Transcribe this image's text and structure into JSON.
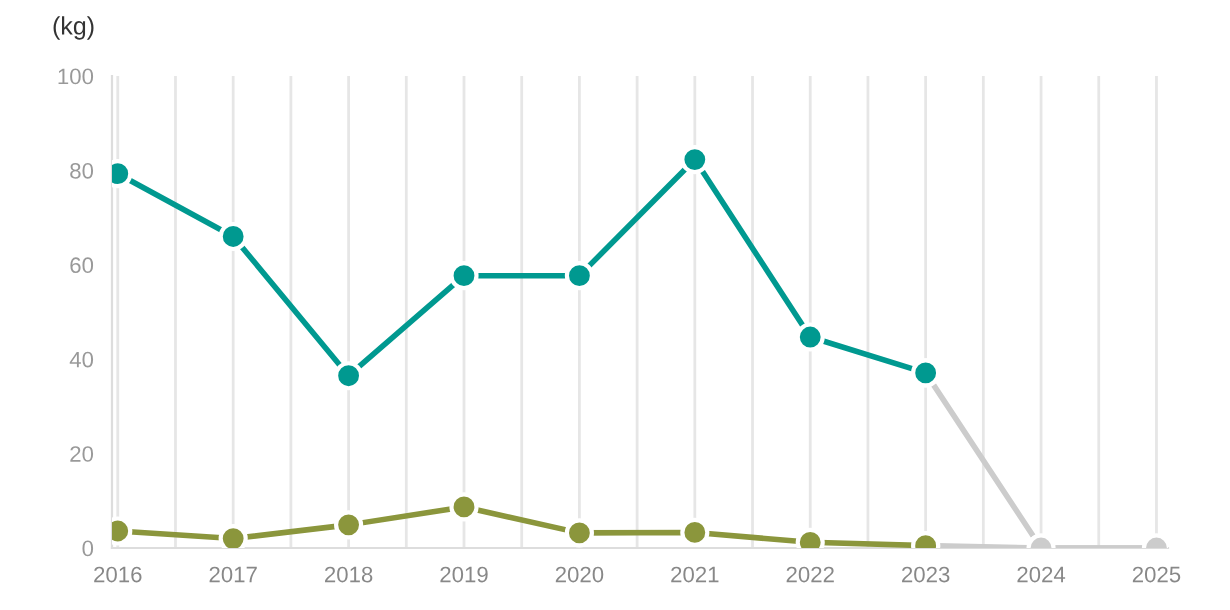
{
  "chart_data": {
    "type": "line",
    "ylabel": "(kg)",
    "categories": [
      "2016",
      "2017",
      "2018",
      "2019",
      "2020",
      "2021",
      "2022",
      "2023",
      "2024",
      "2025"
    ],
    "series": [
      {
        "color": "#cccccc",
        "values": [
          null,
          null,
          null,
          null,
          null,
          null,
          null,
          37.1,
          0,
          0
        ]
      },
      {
        "color": "#cccccc",
        "values": [
          null,
          null,
          null,
          null,
          null,
          null,
          null,
          0.5,
          0,
          0
        ]
      },
      {
        "color": "#009990",
        "values": [
          79.3,
          66,
          36.5,
          57.7,
          57.7,
          82.3,
          44.7,
          37.1,
          null,
          null
        ]
      },
      {
        "color": "#8b963c",
        "values": [
          3.6,
          2.0,
          4.9,
          8.7,
          3.2,
          3.3,
          1.2,
          0.5,
          null,
          null
        ]
      }
    ],
    "ylim": [
      0,
      100
    ],
    "yticks": [
      0,
      20,
      40,
      60,
      80,
      100
    ],
    "grid": "x",
    "marker": "circle",
    "line_style": "solid"
  }
}
